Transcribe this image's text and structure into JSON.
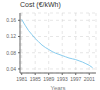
{
  "chart_data": {
    "type": "line",
    "title": "Cost (€/kWh)",
    "xlabel": "Years",
    "x": [
      1981,
      1982,
      1983,
      1984,
      1985,
      1986,
      1987,
      1988,
      1989,
      1990,
      1991,
      1992,
      1993,
      1994,
      1995,
      1996,
      1997,
      1998,
      1999,
      2000,
      2001,
      2002
    ],
    "values": [
      0.162,
      0.148,
      0.135,
      0.125,
      0.115,
      0.107,
      0.099,
      0.093,
      0.088,
      0.083,
      0.079,
      0.076,
      0.073,
      0.07,
      0.067,
      0.065,
      0.063,
      0.06,
      0.057,
      0.053,
      0.049,
      0.043
    ],
    "color": "#88CCEE",
    "xlim": [
      1980.5,
      2003
    ],
    "xticks": [
      1981,
      1985,
      1989,
      1993,
      1997,
      2001
    ],
    "ylim": [
      0.03,
      0.178
    ],
    "yticks": [
      0.04,
      0.08,
      0.12,
      0.16
    ],
    "grid": true
  }
}
